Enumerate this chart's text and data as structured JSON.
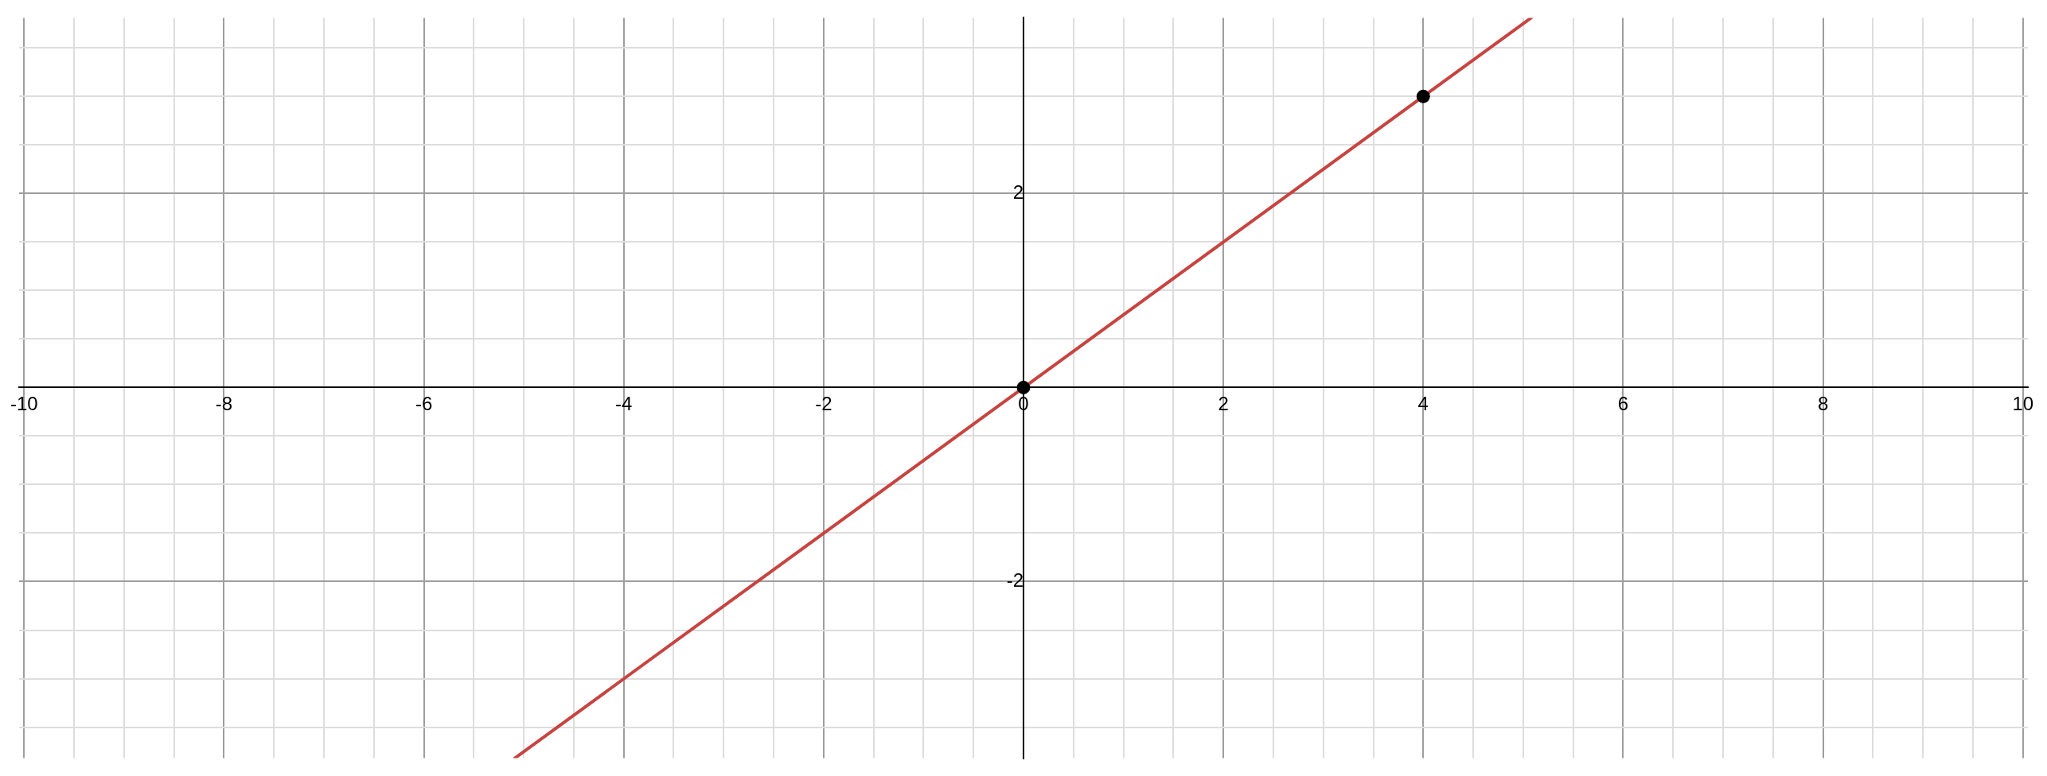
{
  "chart_data": {
    "type": "scatter",
    "xlim": [
      -10.05,
      10.05
    ],
    "ylim": [
      -3.82,
      3.81
    ],
    "xticks": [
      -10,
      {
        "value": -9.5,
        "label": null
      },
      {
        "value": -9,
        "label": null
      },
      {
        "value": -8.5,
        "label": null
      },
      -8,
      {
        "value": -7.5,
        "label": null
      },
      {
        "value": -7,
        "label": null
      },
      {
        "value": -6.5,
        "label": null
      },
      -6,
      {
        "value": -5.5,
        "label": null
      },
      {
        "value": -5,
        "label": null
      },
      {
        "value": -4.5,
        "label": null
      },
      -4,
      {
        "value": -3.5,
        "label": null
      },
      {
        "value": -3,
        "label": null
      },
      {
        "value": -2.5,
        "label": null
      },
      -2,
      {
        "value": -1.5,
        "label": null
      },
      {
        "value": -1,
        "label": null
      },
      {
        "value": -0.5,
        "label": null
      },
      0,
      {
        "value": 0.5,
        "label": null
      },
      {
        "value": 1,
        "label": null
      },
      {
        "value": 1.5,
        "label": null
      },
      2,
      {
        "value": 2.5,
        "label": null
      },
      {
        "value": 3,
        "label": null
      },
      {
        "value": 3.5,
        "label": null
      },
      4,
      {
        "value": 4.5,
        "label": null
      },
      {
        "value": 5,
        "label": null
      },
      {
        "value": 5.5,
        "label": null
      },
      6,
      {
        "value": 6.5,
        "label": null
      },
      {
        "value": 7,
        "label": null
      },
      {
        "value": 7.5,
        "label": null
      },
      8,
      {
        "value": 8.5,
        "label": null
      },
      {
        "value": 9,
        "label": null
      },
      {
        "value": 9.5,
        "label": null
      },
      10
    ],
    "yticks": [
      {
        "value": -3.5,
        "label": null
      },
      {
        "value": -3,
        "label": null
      },
      {
        "value": -2.5,
        "label": null
      },
      -2,
      {
        "value": -1.5,
        "label": null
      },
      {
        "value": -1,
        "label": null
      },
      {
        "value": -0.5,
        "label": null
      },
      {
        "value": 0,
        "label": null
      },
      {
        "value": 0.5,
        "label": null
      },
      {
        "value": 1,
        "label": null
      },
      {
        "value": 1.5,
        "label": null
      },
      2,
      {
        "value": 2.5,
        "label": null
      },
      {
        "value": 3,
        "label": null
      },
      {
        "value": 3.5,
        "label": null
      }
    ],
    "grid": true,
    "series": [
      {
        "type": "line",
        "color": "#c74440",
        "x": [
          -5.09,
          5.08
        ],
        "values": [
          -3.82,
          3.81
        ],
        "marker": "none",
        "line_style": "solid"
      },
      {
        "color": "#000000",
        "x": [
          0,
          4
        ],
        "values": [
          0,
          3
        ],
        "marker": "circle"
      }
    ]
  }
}
